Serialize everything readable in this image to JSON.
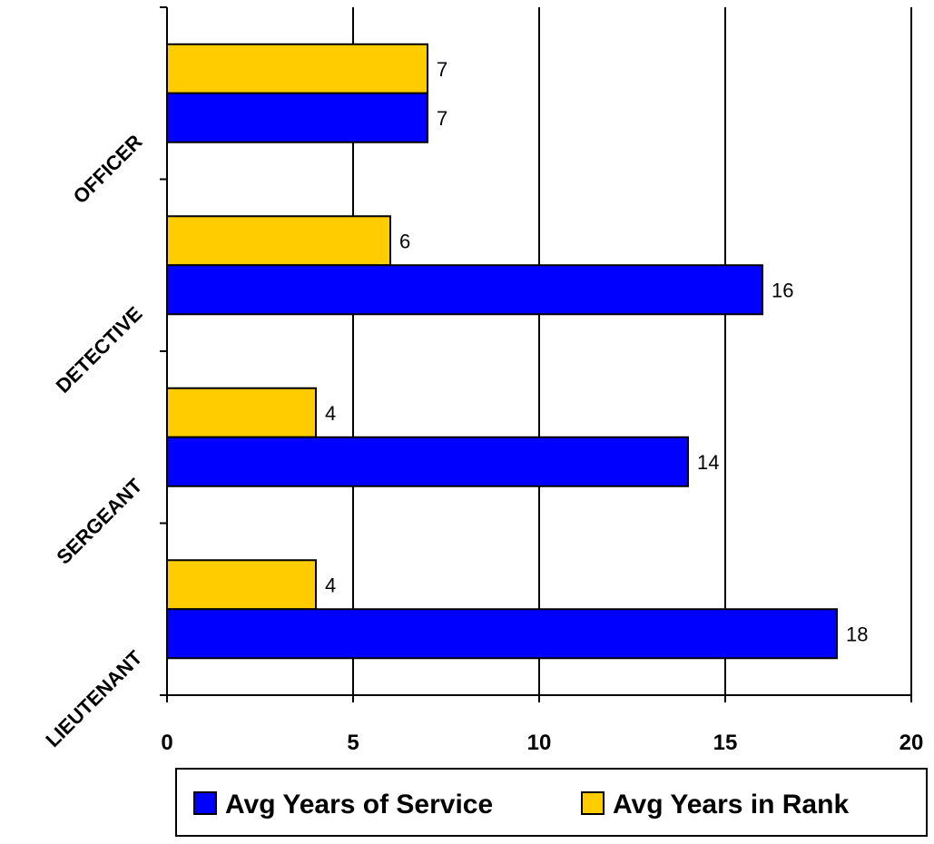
{
  "chart_data": {
    "type": "bar",
    "orientation": "horizontal",
    "categories": [
      "OFFICER",
      "DETECTIVE",
      "SERGEANT",
      "LIEUTENANT"
    ],
    "series": [
      {
        "name": "Avg Years in Rank",
        "values": [
          7,
          6,
          4,
          4
        ],
        "color": "#FFCC00"
      },
      {
        "name": "Avg Years of Service",
        "values": [
          7,
          16,
          14,
          18
        ],
        "color": "#0000FF"
      }
    ],
    "xlim": [
      0,
      20
    ],
    "xticks": [
      "0",
      "5",
      "10",
      "15",
      "20"
    ],
    "grid": "vertical",
    "legend": {
      "position": "bottom-center",
      "entries": [
        "Avg Years of Service",
        "Avg Years in Rank"
      ]
    }
  }
}
